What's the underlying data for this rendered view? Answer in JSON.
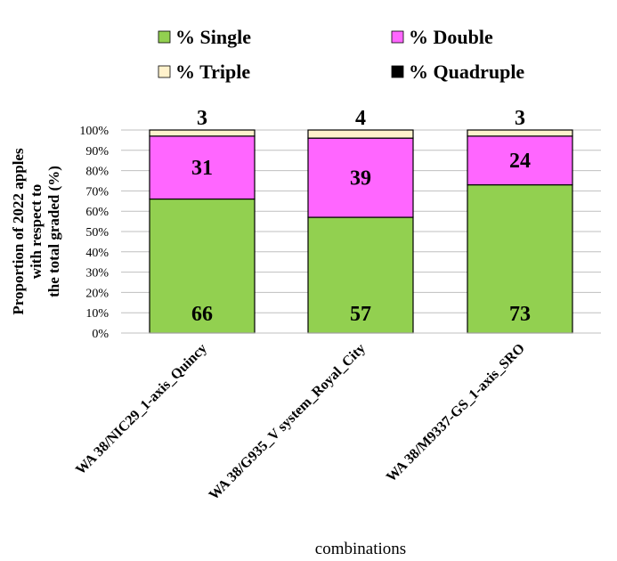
{
  "chart_data": {
    "type": "bar",
    "stacked": true,
    "categories": [
      "WA 38/NIC29_1-axis_Quincy",
      "WA 38/G935_V system_Royal_City",
      "WA 38/M9337-GS_1-axis_SRO"
    ],
    "series": [
      {
        "name": "% Single",
        "values": [
          66,
          57,
          73
        ],
        "color": "#92d050"
      },
      {
        "name": "% Double",
        "values": [
          31,
          39,
          24
        ],
        "color": "#ff66ff"
      },
      {
        "name": "% Triple",
        "values": [
          3,
          4,
          3
        ],
        "color": "#fff2cc"
      },
      {
        "name": "% Quadruple",
        "values": [
          0,
          0,
          0
        ],
        "color": "#000000"
      }
    ],
    "data_labels": {
      "% Single": [
        "66",
        "57",
        "73"
      ],
      "% Double": [
        "31",
        "39",
        "24"
      ],
      "% Triple": [
        "3",
        "4",
        "3"
      ]
    },
    "ylabel_lines": [
      "Proportion of 2022 apples",
      "with respect to",
      "the total graded (%)"
    ],
    "xlabel": "combinations",
    "ylim": [
      0,
      100
    ],
    "yticks": [
      "0%",
      "10%",
      "20%",
      "30%",
      "40%",
      "50%",
      "60%",
      "70%",
      "80%",
      "90%",
      "100%"
    ],
    "grid": true,
    "legend_position": "top"
  }
}
